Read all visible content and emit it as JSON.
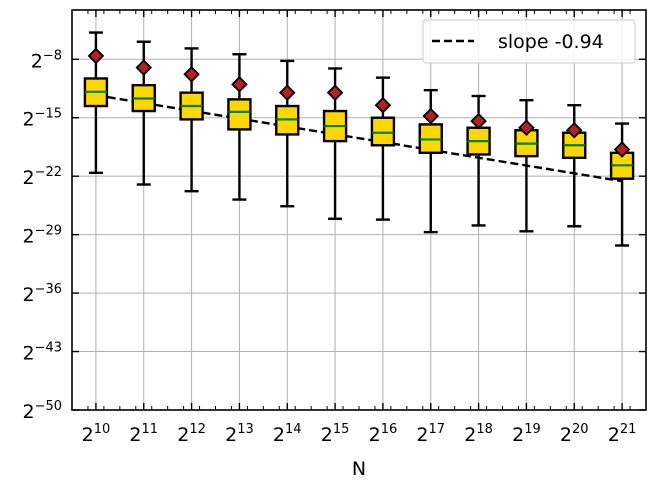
{
  "chart_data": {
    "type": "box",
    "xlabel": "N",
    "ylabel": "",
    "x_scale": "log2",
    "y_scale": "log2",
    "grid": true,
    "x_ticks": [
      {
        "base": "2",
        "exp": "10"
      },
      {
        "base": "2",
        "exp": "11"
      },
      {
        "base": "2",
        "exp": "12"
      },
      {
        "base": "2",
        "exp": "13"
      },
      {
        "base": "2",
        "exp": "14"
      },
      {
        "base": "2",
        "exp": "15"
      },
      {
        "base": "2",
        "exp": "16"
      },
      {
        "base": "2",
        "exp": "17"
      },
      {
        "base": "2",
        "exp": "18"
      },
      {
        "base": "2",
        "exp": "19"
      },
      {
        "base": "2",
        "exp": "20"
      },
      {
        "base": "2",
        "exp": "21"
      }
    ],
    "y_ticks": [
      {
        "base": "2",
        "exp": "−8"
      },
      {
        "base": "2",
        "exp": "−15"
      },
      {
        "base": "2",
        "exp": "−22"
      },
      {
        "base": "2",
        "exp": "−29"
      },
      {
        "base": "2",
        "exp": "−36"
      },
      {
        "base": "2",
        "exp": "−43"
      },
      {
        "base": "2",
        "exp": "−50"
      }
    ],
    "y_tick_values_log2": [
      -8,
      -15,
      -22,
      -29,
      -36,
      -43,
      -50
    ],
    "xlim_log2": [
      9.5,
      21.5
    ],
    "ylim_log2": [
      -50,
      -2.1
    ],
    "legend": {
      "placement": "top-right",
      "entries": [
        {
          "label": "slope -0.94",
          "style": "dashed-black"
        }
      ]
    },
    "colors": {
      "box_fill": "#ffd700",
      "median": "#008000",
      "mean_marker": "#b22222",
      "whisker": "#000000",
      "grid": "#b0b0b0",
      "fit_line": "#000000"
    },
    "fit_line": {
      "slope": -0.94,
      "x_log2": [
        10,
        21
      ],
      "y_log2": [
        -12.3,
        -22.6
      ]
    },
    "boxes": [
      {
        "x_log2": 10,
        "whisker_low": -21.6,
        "q1": -13.6,
        "median": -11.9,
        "q3": -10.3,
        "whisker_high": -4.8,
        "mean": -7.6
      },
      {
        "x_log2": 11,
        "whisker_low": -23.0,
        "q1": -14.2,
        "median": -12.7,
        "q3": -11.1,
        "whisker_high": -5.9,
        "mean": -9.0
      },
      {
        "x_log2": 12,
        "whisker_low": -23.8,
        "q1": -15.2,
        "median": -13.6,
        "q3": -12.0,
        "whisker_high": -6.7,
        "mean": -9.8
      },
      {
        "x_log2": 13,
        "whisker_low": -24.8,
        "q1": -16.4,
        "median": -14.3,
        "q3": -12.8,
        "whisker_high": -7.4,
        "mean": -11.0
      },
      {
        "x_log2": 14,
        "whisker_low": -25.6,
        "q1": -17.0,
        "median": -15.2,
        "q3": -13.6,
        "whisker_high": -8.2,
        "mean": -12.0
      },
      {
        "x_log2": 15,
        "whisker_low": -27.1,
        "q1": -17.8,
        "median": -16.0,
        "q3": -14.2,
        "whisker_high": -9.1,
        "mean": -12.0
      },
      {
        "x_log2": 16,
        "whisker_low": -27.2,
        "q1": -18.3,
        "median": -16.8,
        "q3": -15.0,
        "whisker_high": -10.2,
        "mean": -13.5
      },
      {
        "x_log2": 17,
        "whisker_low": -28.7,
        "q1": -19.2,
        "median": -17.6,
        "q3": -15.8,
        "whisker_high": -11.7,
        "mean": -14.8
      },
      {
        "x_log2": 18,
        "whisker_low": -27.9,
        "q1": -19.4,
        "median": -17.8,
        "q3": -16.2,
        "whisker_high": -12.4,
        "mean": -15.4
      },
      {
        "x_log2": 19,
        "whisker_low": -28.6,
        "q1": -19.6,
        "median": -18.1,
        "q3": -16.5,
        "whisker_high": -12.9,
        "mean": -16.2
      },
      {
        "x_log2": 20,
        "whisker_low": -28.0,
        "q1": -19.8,
        "median": -18.3,
        "q3": -16.8,
        "whisker_high": -13.5,
        "mean": -16.5
      },
      {
        "x_log2": 21,
        "whisker_low": -30.3,
        "q1": -22.3,
        "median": -20.7,
        "q3": -19.2,
        "whisker_high": -15.7,
        "mean": -18.8
      }
    ]
  }
}
